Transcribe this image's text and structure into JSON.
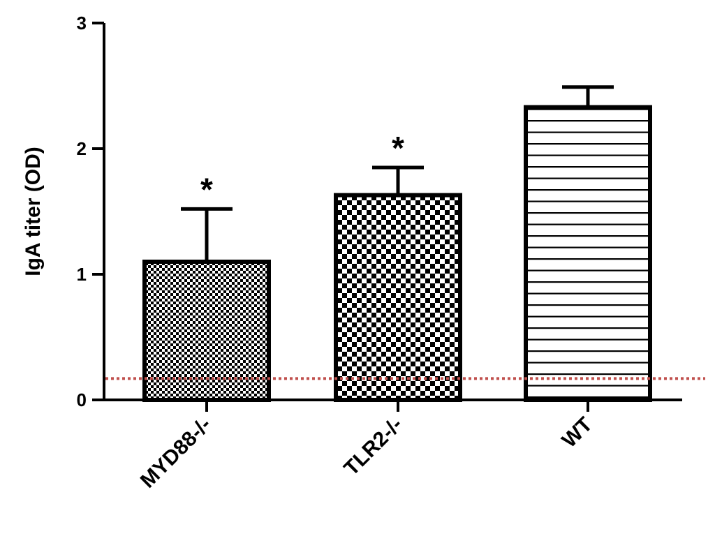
{
  "chart_data": {
    "type": "bar",
    "title": "",
    "xlabel": "",
    "ylabel": "IgA titer (OD)",
    "ylim": [
      0,
      3
    ],
    "yticks": [
      "0",
      "1",
      "2",
      "3"
    ],
    "categories": [
      "MYD88-/-",
      "TLR2-/-",
      "WT"
    ],
    "values": [
      1.1,
      1.63,
      2.33
    ],
    "errors": [
      0.42,
      0.22,
      0.16
    ],
    "significance": [
      "*",
      "*",
      ""
    ],
    "patterns": [
      "fine-check",
      "checkerboard",
      "horizontal-lines"
    ],
    "reference_line": {
      "value": 0.17,
      "color": "#c0504d",
      "style": "dotted"
    },
    "grid": false,
    "legend": "none",
    "bar_color": "#000000",
    "fill_color": "#ffffff"
  }
}
